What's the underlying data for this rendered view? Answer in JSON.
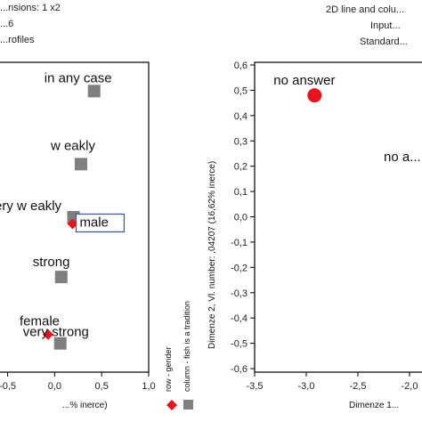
{
  "header_left": [
    "...nsions: 1 x2",
    "...6",
    "...rofiles"
  ],
  "header_right": [
    "2D line and colu...",
    "Input...",
    "Standard..."
  ],
  "legend": {
    "row_label": "row - gender",
    "col_label": "column - fish is a tradition",
    "row_color": "#e8141c",
    "col_color": "#7f7f7f"
  },
  "chart_data": [
    {
      "type": "scatter",
      "title": "",
      "xlabel": "...% inerce)",
      "ylabel": "",
      "xlim": [
        -0.6,
        1.0
      ],
      "ylim": [
        -0.65,
        0.75
      ],
      "x_ticks": [
        -0.5,
        0.0,
        0.5,
        1.0
      ],
      "x_tick_labels": [
        "-0,5",
        "0,0",
        "0,5",
        "1,0"
      ],
      "grid": false,
      "series": [
        {
          "name": "row - gender",
          "marker": "diamond",
          "color": "#e8141c",
          "points": [
            {
              "label": "male",
              "x": 0.19,
              "y": 0.02,
              "boxed": true
            },
            {
              "label": "female",
              "x": -0.07,
              "y": -0.48,
              "boxed": false
            }
          ]
        },
        {
          "name": "column - fish is a tradition",
          "marker": "square",
          "color": "#7f7f7f",
          "points": [
            {
              "label": "in any case",
              "x": 0.42,
              "y": 0.62
            },
            {
              "label": "w eakly",
              "x": 0.28,
              "y": 0.29
            },
            {
              "label": "very w eakly",
              "x": 0.2,
              "y": 0.05
            },
            {
              "label": "strong",
              "x": 0.07,
              "y": -0.22
            },
            {
              "label": "very strong",
              "x": 0.06,
              "y": -0.52
            }
          ]
        }
      ]
    },
    {
      "type": "scatter",
      "title": "",
      "xlabel": "Dimenze 1...",
      "ylabel": "Dimenze 2, Vl. number: ,04207 (16,62% inerce)",
      "xlim": [
        -3.5,
        -1.9
      ],
      "ylim": [
        -0.6,
        0.6
      ],
      "x_ticks": [
        -3.5,
        -3.0,
        -2.5,
        -2.0
      ],
      "x_tick_labels": [
        "-3,5",
        "-3,0",
        "-2,5",
        "-2,0"
      ],
      "y_ticks": [
        0.6,
        0.5,
        0.4,
        0.3,
        0.2,
        0.1,
        0.0,
        -0.1,
        -0.2,
        -0.3,
        -0.4,
        -0.5,
        -0.6
      ],
      "y_tick_labels": [
        "0,6",
        "0,5",
        "0,4",
        "0,3",
        "0,2",
        "0,1",
        "0,0",
        "-0,1",
        "-0,2",
        "-0,3",
        "-0,4",
        "-0,5",
        "-0,6"
      ],
      "grid": false,
      "series": [
        {
          "name": "row",
          "marker": "circle",
          "color": "#e8141c",
          "points": [
            {
              "label": "no answer",
              "x": -2.92,
              "y": 0.48
            }
          ]
        },
        {
          "name": "column",
          "marker": "none",
          "color": "#111111",
          "points": [
            {
              "label": "no a...",
              "x": -2.1,
              "y": 0.22
            }
          ]
        }
      ]
    }
  ]
}
